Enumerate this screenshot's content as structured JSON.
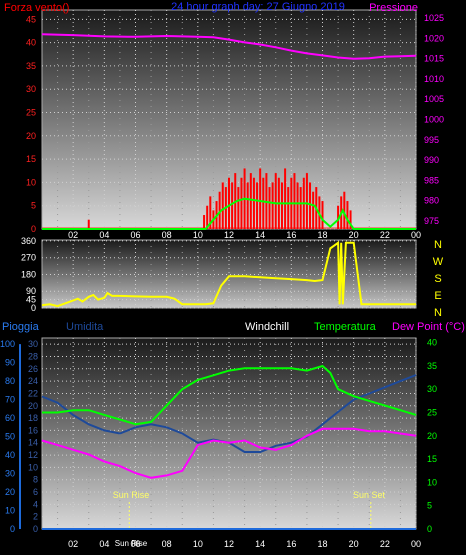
{
  "chart_data": [
    {
      "type": "line",
      "title": "24 hour graph day:  27 Giugno 2019",
      "left_label": "Forza vento()",
      "right_label": "Pressione",
      "x_ticks": [
        "02",
        "04",
        "06",
        "08",
        "10",
        "12",
        "14",
        "16",
        "18",
        "20",
        "22",
        "00"
      ],
      "y_left_ticks": [
        0,
        5,
        10,
        15,
        20,
        25,
        30,
        35,
        40,
        45
      ],
      "y_right_ticks": [
        975,
        980,
        985,
        990,
        995,
        1000,
        1005,
        1010,
        1015,
        1020,
        1025
      ],
      "ylim_left": [
        0,
        47
      ],
      "ylim_right": [
        973,
        1027
      ],
      "xlim": [
        0,
        24
      ],
      "grid": true,
      "series": [
        {
          "key": "pressure",
          "axis": "right",
          "color": "#ff00ff",
          "x": [
            0,
            2,
            4,
            6,
            8,
            10,
            11,
            12,
            13,
            14,
            15,
            16,
            17,
            18,
            19,
            20,
            21,
            22,
            23,
            24
          ],
          "y": [
            1021,
            1020.8,
            1020.5,
            1020.4,
            1020.6,
            1020.4,
            1020.3,
            1019.7,
            1019,
            1018.5,
            1017.8,
            1017,
            1016.3,
            1015.8,
            1015.3,
            1015,
            1015.1,
            1015.5,
            1015.6,
            1015.7
          ]
        },
        {
          "key": "wind_gust",
          "axis": "left",
          "color": "#ff0000",
          "style": "bars",
          "x": [
            3.0,
            10.4,
            10.6,
            10.8,
            11.0,
            11.2,
            11.4,
            11.6,
            11.8,
            12.0,
            12.2,
            12.4,
            12.6,
            12.8,
            13.0,
            13.2,
            13.4,
            13.6,
            13.8,
            14.0,
            14.2,
            14.4,
            14.6,
            14.8,
            15.0,
            15.2,
            15.4,
            15.6,
            15.8,
            16.0,
            16.2,
            16.4,
            16.6,
            16.8,
            17.0,
            17.2,
            17.4,
            17.6,
            17.8,
            18.0,
            19.0,
            19.2,
            19.4,
            19.6,
            19.8
          ],
          "y": [
            2,
            3,
            5,
            7,
            4,
            6,
            8,
            10,
            9,
            11,
            10,
            12,
            9,
            11,
            13,
            10,
            12,
            11,
            10,
            13,
            11,
            12,
            9,
            10,
            12,
            11,
            10,
            13,
            9,
            11,
            12,
            10,
            9,
            11,
            12,
            10,
            8,
            9,
            7,
            6,
            5,
            7,
            8,
            6,
            4
          ]
        },
        {
          "key": "wind_avg",
          "axis": "left",
          "color": "#00ff00",
          "x": [
            0,
            10.5,
            11,
            11.5,
            12,
            12.5,
            13,
            14,
            15,
            16,
            17,
            17.5,
            18,
            18.5,
            19,
            19.3,
            19.6,
            20,
            21,
            22,
            24
          ],
          "y": [
            0,
            0,
            2,
            4,
            5,
            6,
            6.5,
            6,
            5.5,
            5.5,
            5.5,
            5,
            2,
            0.5,
            2,
            4,
            2,
            0,
            0,
            0,
            0
          ]
        }
      ]
    },
    {
      "type": "line",
      "right_label": "N W S E N",
      "right_letters": [
        "N",
        "W",
        "S",
        "E",
        "N"
      ],
      "y_ticks": [
        0,
        45,
        90,
        180,
        270,
        360
      ],
      "ylim": [
        0,
        365
      ],
      "xlim": [
        0,
        24
      ],
      "grid": true,
      "series": [
        {
          "key": "wind_dir",
          "color": "#ffff00",
          "x": [
            0,
            0.5,
            1,
            1.5,
            2,
            2.3,
            2.6,
            3,
            3.3,
            3.6,
            4,
            4.2,
            4.5,
            5,
            6,
            7,
            8,
            8.5,
            9,
            10,
            10.5,
            11,
            11.5,
            12,
            13,
            14,
            15,
            16,
            17,
            17.5,
            18,
            18.5,
            19,
            19.1,
            19.2,
            19.3,
            19.5,
            19.8,
            20,
            20.5,
            21,
            22,
            24
          ],
          "y": [
            15,
            20,
            10,
            25,
            40,
            50,
            35,
            60,
            70,
            45,
            55,
            80,
            65,
            65,
            62,
            60,
            60,
            50,
            20,
            20,
            20,
            25,
            120,
            170,
            170,
            165,
            160,
            155,
            150,
            145,
            150,
            320,
            350,
            20,
            350,
            20,
            350,
            350,
            350,
            20,
            20,
            20,
            20
          ]
        }
      ]
    },
    {
      "type": "line",
      "labels": {
        "pioggia": "Pioggia",
        "umidita": "Umidita",
        "windchill": "Windchill",
        "temperatura": "Temperatura",
        "dewpoint": "Dew Point (°C)"
      },
      "y_rain_ticks": [
        0,
        10,
        20,
        30,
        40,
        50,
        60,
        70,
        80,
        90,
        100
      ],
      "y_left_ticks": [
        0,
        2,
        4,
        6,
        8,
        10,
        12,
        14,
        16,
        18,
        20,
        22,
        24,
        26,
        28,
        30
      ],
      "y_right_ticks": [
        0,
        5,
        10,
        15,
        20,
        25,
        30,
        35,
        40
      ],
      "ylim_left": [
        0,
        31
      ],
      "ylim_right": [
        0,
        41
      ],
      "xlim": [
        0,
        24
      ],
      "grid": true,
      "sun_rise": {
        "label": "Sun Rise",
        "x": 5.6
      },
      "sun_set": {
        "label": "Sun Set",
        "x": 21.1
      },
      "bottom_marker": "Sun Rise",
      "series": [
        {
          "key": "rain",
          "axis": "left",
          "color": "#1e6bdc",
          "x": [
            0,
            24
          ],
          "y": [
            0,
            0
          ]
        },
        {
          "key": "humidity",
          "axis": "left",
          "color": "#1e4a9a",
          "x": [
            0,
            1,
            2,
            3,
            4,
            5,
            6,
            7,
            8,
            9,
            10,
            11,
            12,
            13,
            14,
            15,
            16,
            17,
            18,
            19,
            20,
            21,
            22,
            23,
            24
          ],
          "y": [
            21.5,
            20.5,
            18.5,
            17,
            16,
            15.5,
            16.5,
            17,
            16.5,
            15.5,
            14,
            14.5,
            14,
            12.5,
            12.5,
            13.5,
            14,
            15,
            17,
            19,
            21,
            22,
            23,
            24,
            25
          ]
        },
        {
          "key": "temperature",
          "axis": "right",
          "color": "#00ff00",
          "x": [
            0,
            1,
            2,
            3,
            4,
            5,
            6,
            7,
            8,
            9,
            10,
            11,
            12,
            13,
            14,
            15,
            16,
            17,
            18,
            18.5,
            19,
            20,
            21,
            22,
            23,
            24
          ],
          "y": [
            25,
            25,
            25.5,
            25.5,
            24.5,
            23.5,
            22.5,
            23,
            26.5,
            30,
            32,
            33,
            34,
            34.5,
            34.5,
            34.5,
            34.5,
            34,
            35,
            33.5,
            30,
            28.5,
            27.5,
            26.5,
            25.5,
            24.5
          ]
        },
        {
          "key": "dewpoint",
          "axis": "right",
          "color": "#ff00ff",
          "x": [
            0,
            1,
            2,
            3,
            4,
            5,
            6,
            7,
            8,
            9,
            10,
            11,
            12,
            13,
            14,
            15,
            16,
            17,
            18,
            19,
            20,
            21,
            22,
            23,
            24
          ],
          "y": [
            19,
            18,
            17,
            16,
            14.5,
            13.5,
            12,
            11,
            11.5,
            12.5,
            18,
            19,
            18.5,
            19,
            17.5,
            17,
            18,
            20,
            21.5,
            21.5,
            21.5,
            21,
            21,
            20.5,
            20
          ]
        }
      ]
    }
  ]
}
